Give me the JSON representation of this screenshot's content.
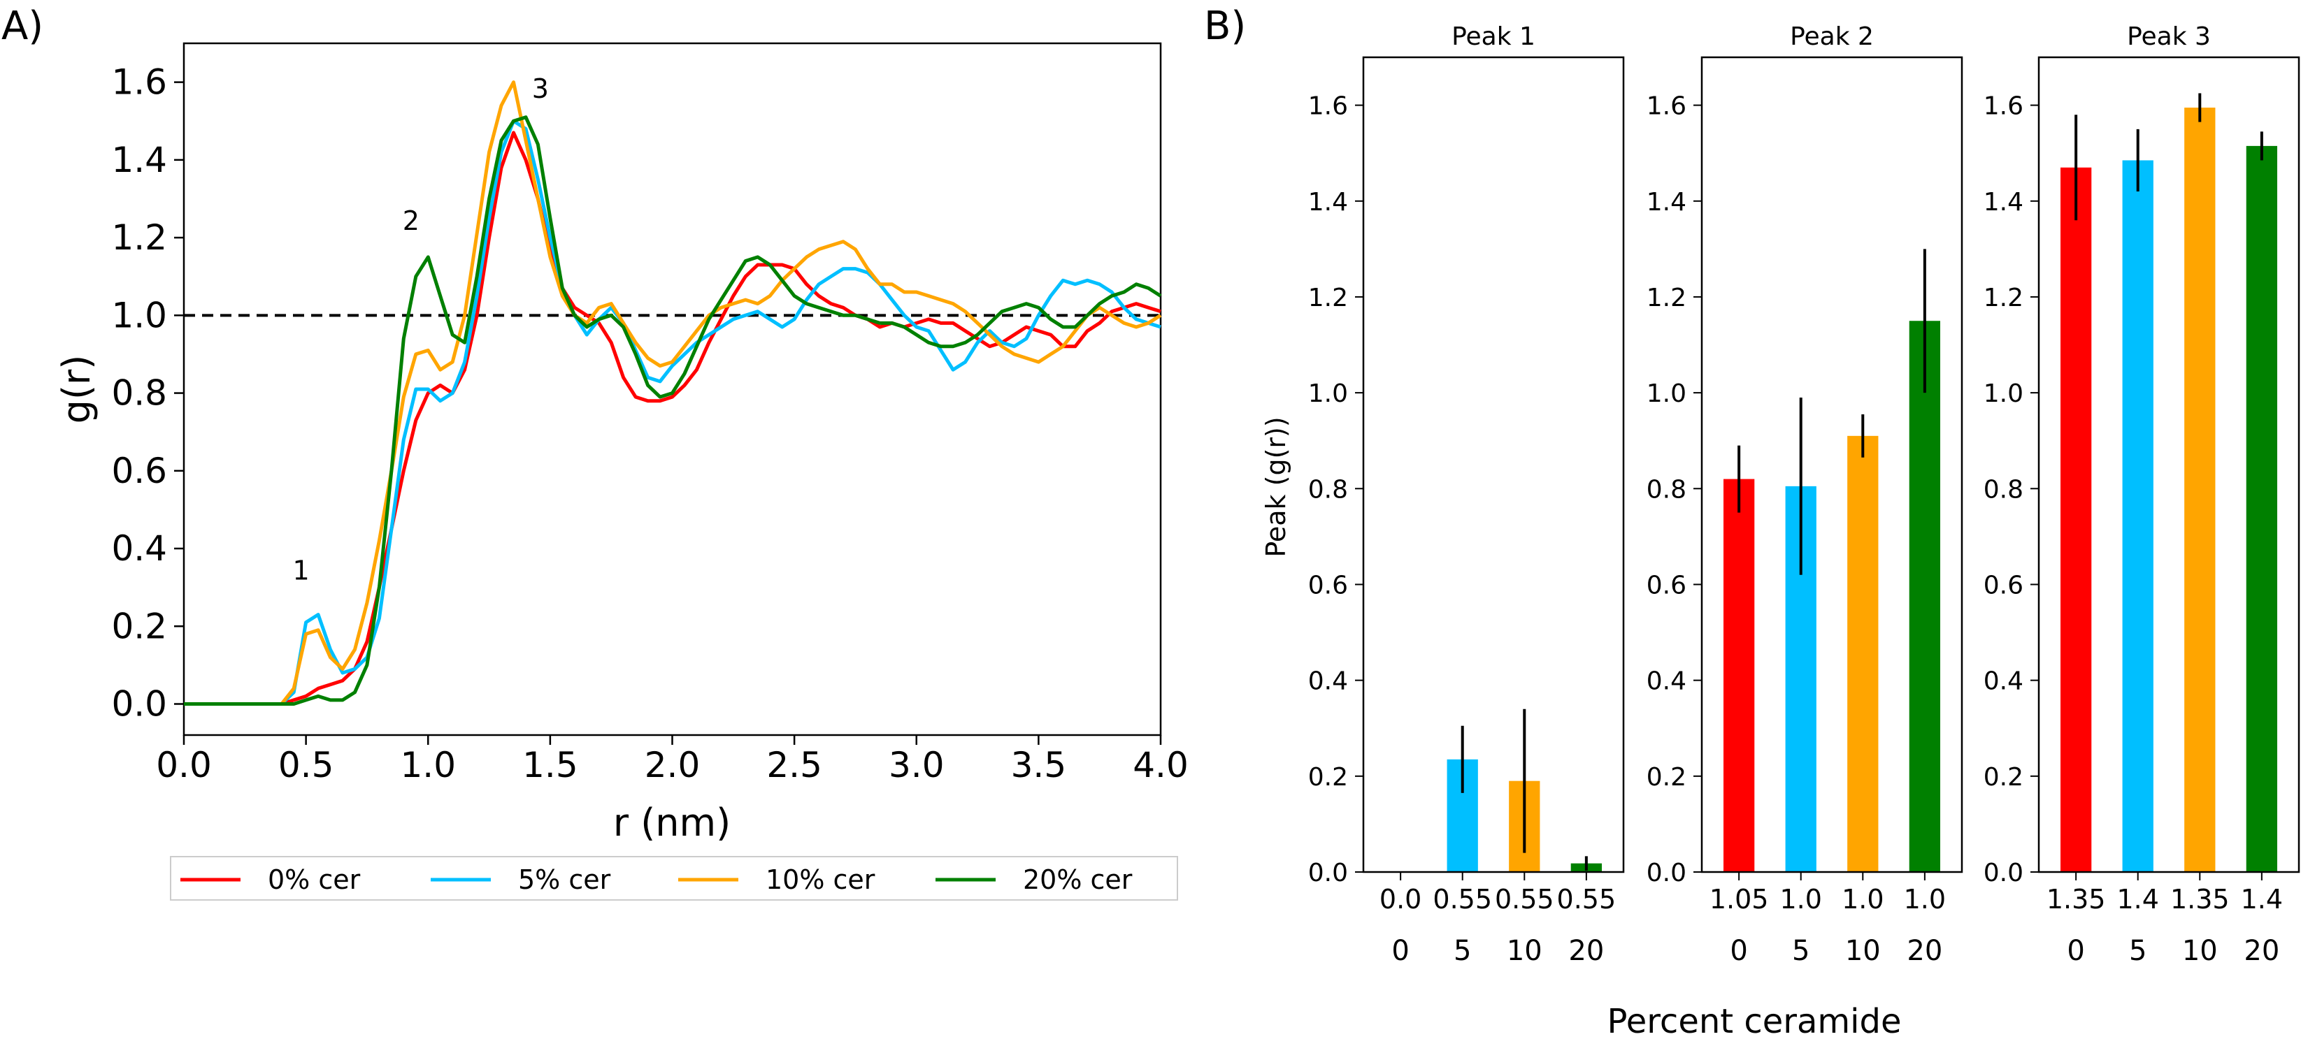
{
  "panel_labels": {
    "a": "A)",
    "b": "B)"
  },
  "colors": {
    "0": "#ff0000",
    "5": "#00bfff",
    "10": "#ffa500",
    "20": "#008000",
    "reference_line": "#000000",
    "error_bar": "#000000"
  },
  "chart_data": [
    {
      "type": "line",
      "xlabel": "r (nm)",
      "ylabel": "g(r)",
      "xlim": [
        0.0,
        4.0
      ],
      "ylim": [
        -0.08,
        1.7
      ],
      "xticks": [
        "0.0",
        "0.5",
        "1.0",
        "1.5",
        "2.0",
        "2.5",
        "3.0",
        "3.5",
        "4.0"
      ],
      "yticks": [
        "0.0",
        "0.2",
        "0.4",
        "0.6",
        "0.8",
        "1.0",
        "1.2",
        "1.4",
        "1.6"
      ],
      "grid": false,
      "legend_placement": "below",
      "reference_line": {
        "y": 1.0,
        "style": "dashed"
      },
      "annotations": [
        {
          "text": "1",
          "x": 0.48,
          "y": 0.32
        },
        {
          "text": "2",
          "x": 0.93,
          "y": 1.22
        },
        {
          "text": "3",
          "x": 1.46,
          "y": 1.56
        }
      ],
      "series": [
        {
          "name": "0% cer",
          "color": "#ff0000",
          "x": [
            0.0,
            0.4,
            0.45,
            0.5,
            0.55,
            0.6,
            0.65,
            0.7,
            0.75,
            0.8,
            0.85,
            0.9,
            0.95,
            1.0,
            1.05,
            1.1,
            1.15,
            1.2,
            1.25,
            1.3,
            1.35,
            1.4,
            1.45,
            1.5,
            1.55,
            1.6,
            1.65,
            1.7,
            1.75,
            1.8,
            1.85,
            1.9,
            1.95,
            2.0,
            2.05,
            2.1,
            2.15,
            2.2,
            2.25,
            2.3,
            2.35,
            2.4,
            2.45,
            2.5,
            2.55,
            2.6,
            2.65,
            2.7,
            2.75,
            2.8,
            2.85,
            2.9,
            2.95,
            3.0,
            3.05,
            3.1,
            3.15,
            3.2,
            3.25,
            3.3,
            3.35,
            3.4,
            3.45,
            3.5,
            3.55,
            3.6,
            3.65,
            3.7,
            3.75,
            3.8,
            3.85,
            3.9,
            3.95,
            4.0
          ],
          "y": [
            0.0,
            0.0,
            0.01,
            0.02,
            0.04,
            0.05,
            0.06,
            0.09,
            0.16,
            0.3,
            0.45,
            0.6,
            0.73,
            0.8,
            0.82,
            0.8,
            0.86,
            1.0,
            1.2,
            1.38,
            1.47,
            1.4,
            1.3,
            1.17,
            1.07,
            1.02,
            1.0,
            0.98,
            0.93,
            0.84,
            0.79,
            0.78,
            0.78,
            0.79,
            0.82,
            0.86,
            0.93,
            0.99,
            1.05,
            1.1,
            1.13,
            1.13,
            1.13,
            1.12,
            1.08,
            1.05,
            1.03,
            1.02,
            1.0,
            0.99,
            0.97,
            0.98,
            0.97,
            0.98,
            0.99,
            0.98,
            0.98,
            0.96,
            0.94,
            0.92,
            0.93,
            0.95,
            0.97,
            0.96,
            0.95,
            0.92,
            0.92,
            0.96,
            0.98,
            1.01,
            1.02,
            1.03,
            1.02,
            1.01
          ]
        },
        {
          "name": "5% cer",
          "color": "#00bfff",
          "x": [
            0.0,
            0.4,
            0.45,
            0.5,
            0.55,
            0.6,
            0.65,
            0.7,
            0.75,
            0.8,
            0.85,
            0.9,
            0.95,
            1.0,
            1.05,
            1.1,
            1.15,
            1.2,
            1.25,
            1.3,
            1.35,
            1.4,
            1.45,
            1.5,
            1.55,
            1.6,
            1.65,
            1.7,
            1.75,
            1.8,
            1.85,
            1.9,
            1.95,
            2.0,
            2.05,
            2.1,
            2.15,
            2.2,
            2.25,
            2.3,
            2.35,
            2.4,
            2.45,
            2.5,
            2.55,
            2.6,
            2.65,
            2.7,
            2.75,
            2.8,
            2.85,
            2.9,
            2.95,
            3.0,
            3.05,
            3.1,
            3.15,
            3.2,
            3.25,
            3.3,
            3.35,
            3.4,
            3.45,
            3.5,
            3.55,
            3.6,
            3.65,
            3.7,
            3.75,
            3.8,
            3.85,
            3.9,
            3.95,
            4.0
          ],
          "y": [
            0.0,
            0.0,
            0.03,
            0.21,
            0.23,
            0.14,
            0.08,
            0.09,
            0.12,
            0.22,
            0.45,
            0.68,
            0.81,
            0.81,
            0.78,
            0.8,
            0.88,
            1.05,
            1.25,
            1.42,
            1.5,
            1.48,
            1.35,
            1.2,
            1.07,
            1.0,
            0.95,
            0.99,
            1.02,
            0.98,
            0.91,
            0.84,
            0.83,
            0.87,
            0.9,
            0.93,
            0.95,
            0.97,
            0.99,
            1.0,
            1.01,
            0.99,
            0.97,
            0.99,
            1.04,
            1.08,
            1.1,
            1.12,
            1.12,
            1.11,
            1.08,
            1.04,
            1.0,
            0.97,
            0.96,
            0.91,
            0.86,
            0.88,
            0.93,
            0.96,
            0.93,
            0.92,
            0.94,
            1.0,
            1.05,
            1.09,
            1.08,
            1.09,
            1.08,
            1.06,
            1.02,
            0.99,
            0.98,
            0.97
          ]
        },
        {
          "name": "10% cer",
          "color": "#ffa500",
          "x": [
            0.0,
            0.4,
            0.45,
            0.5,
            0.55,
            0.6,
            0.65,
            0.7,
            0.75,
            0.8,
            0.85,
            0.9,
            0.95,
            1.0,
            1.05,
            1.1,
            1.15,
            1.2,
            1.25,
            1.3,
            1.35,
            1.4,
            1.45,
            1.5,
            1.55,
            1.6,
            1.65,
            1.7,
            1.75,
            1.8,
            1.85,
            1.9,
            1.95,
            2.0,
            2.05,
            2.1,
            2.15,
            2.2,
            2.25,
            2.3,
            2.35,
            2.4,
            2.45,
            2.5,
            2.55,
            2.6,
            2.65,
            2.7,
            2.75,
            2.8,
            2.85,
            2.9,
            2.95,
            3.0,
            3.05,
            3.1,
            3.15,
            3.2,
            3.25,
            3.3,
            3.35,
            3.4,
            3.45,
            3.5,
            3.55,
            3.6,
            3.65,
            3.7,
            3.75,
            3.8,
            3.85,
            3.9,
            3.95,
            4.0
          ],
          "y": [
            0.0,
            0.0,
            0.04,
            0.18,
            0.19,
            0.12,
            0.09,
            0.14,
            0.26,
            0.42,
            0.6,
            0.79,
            0.9,
            0.91,
            0.86,
            0.88,
            1.0,
            1.21,
            1.42,
            1.54,
            1.6,
            1.45,
            1.3,
            1.15,
            1.05,
            1.0,
            0.98,
            1.02,
            1.03,
            0.98,
            0.93,
            0.89,
            0.87,
            0.88,
            0.92,
            0.96,
            1.0,
            1.02,
            1.03,
            1.04,
            1.03,
            1.05,
            1.09,
            1.12,
            1.15,
            1.17,
            1.18,
            1.19,
            1.17,
            1.12,
            1.08,
            1.08,
            1.06,
            1.06,
            1.05,
            1.04,
            1.03,
            1.01,
            0.98,
            0.95,
            0.92,
            0.9,
            0.89,
            0.88,
            0.9,
            0.92,
            0.96,
            1.0,
            1.02,
            1.0,
            0.98,
            0.97,
            0.98,
            1.0
          ]
        },
        {
          "name": "20% cer",
          "color": "#008000",
          "x": [
            0.0,
            0.4,
            0.45,
            0.5,
            0.55,
            0.6,
            0.65,
            0.7,
            0.75,
            0.8,
            0.85,
            0.9,
            0.95,
            1.0,
            1.05,
            1.1,
            1.15,
            1.2,
            1.25,
            1.3,
            1.35,
            1.4,
            1.45,
            1.5,
            1.55,
            1.6,
            1.65,
            1.7,
            1.75,
            1.8,
            1.85,
            1.9,
            1.95,
            2.0,
            2.05,
            2.1,
            2.15,
            2.2,
            2.25,
            2.3,
            2.35,
            2.4,
            2.45,
            2.5,
            2.55,
            2.6,
            2.65,
            2.7,
            2.75,
            2.8,
            2.85,
            2.9,
            2.95,
            3.0,
            3.05,
            3.1,
            3.15,
            3.2,
            3.25,
            3.3,
            3.35,
            3.4,
            3.45,
            3.5,
            3.55,
            3.6,
            3.65,
            3.7,
            3.75,
            3.8,
            3.85,
            3.9,
            3.95,
            4.0
          ],
          "y": [
            0.0,
            0.0,
            0.0,
            0.01,
            0.02,
            0.01,
            0.01,
            0.03,
            0.1,
            0.3,
            0.6,
            0.94,
            1.1,
            1.15,
            1.05,
            0.95,
            0.93,
            1.1,
            1.3,
            1.45,
            1.5,
            1.51,
            1.44,
            1.25,
            1.07,
            1.0,
            0.97,
            0.99,
            1.0,
            0.97,
            0.9,
            0.82,
            0.79,
            0.8,
            0.85,
            0.92,
            0.99,
            1.04,
            1.09,
            1.14,
            1.15,
            1.13,
            1.09,
            1.05,
            1.03,
            1.02,
            1.01,
            1.0,
            1.0,
            0.99,
            0.98,
            0.98,
            0.97,
            0.95,
            0.93,
            0.92,
            0.92,
            0.93,
            0.95,
            0.98,
            1.01,
            1.02,
            1.03,
            1.02,
            0.99,
            0.97,
            0.97,
            1.0,
            1.03,
            1.05,
            1.06,
            1.08,
            1.07,
            1.05
          ]
        }
      ]
    },
    {
      "type": "bar",
      "ylabel": "Peak (g(r))",
      "xlabel": "Percent ceramide",
      "ylim": [
        0.0,
        1.7
      ],
      "yticks": [
        "0.0",
        "0.2",
        "0.4",
        "0.6",
        "0.8",
        "1.0",
        "1.2",
        "1.4",
        "1.6"
      ],
      "grid": false,
      "categories": [
        "0",
        "5",
        "10",
        "20"
      ],
      "panels": [
        {
          "title": "Peak 1",
          "position_labels": [
            "0.0",
            "0.55",
            "0.55",
            "0.55"
          ],
          "values": [
            0.0,
            0.235,
            0.19,
            0.018
          ],
          "errors": [
            0.0,
            0.07,
            0.15,
            0.015
          ]
        },
        {
          "title": "Peak 2",
          "position_labels": [
            "1.05",
            "1.0",
            "1.0",
            "1.0"
          ],
          "values": [
            0.82,
            0.805,
            0.91,
            1.15
          ],
          "errors": [
            0.07,
            0.185,
            0.045,
            0.15
          ]
        },
        {
          "title": "Peak 3",
          "position_labels": [
            "1.35",
            "1.4",
            "1.35",
            "1.4"
          ],
          "values": [
            1.47,
            1.485,
            1.595,
            1.515
          ],
          "errors": [
            0.11,
            0.065,
            0.03,
            0.03
          ]
        }
      ]
    }
  ]
}
